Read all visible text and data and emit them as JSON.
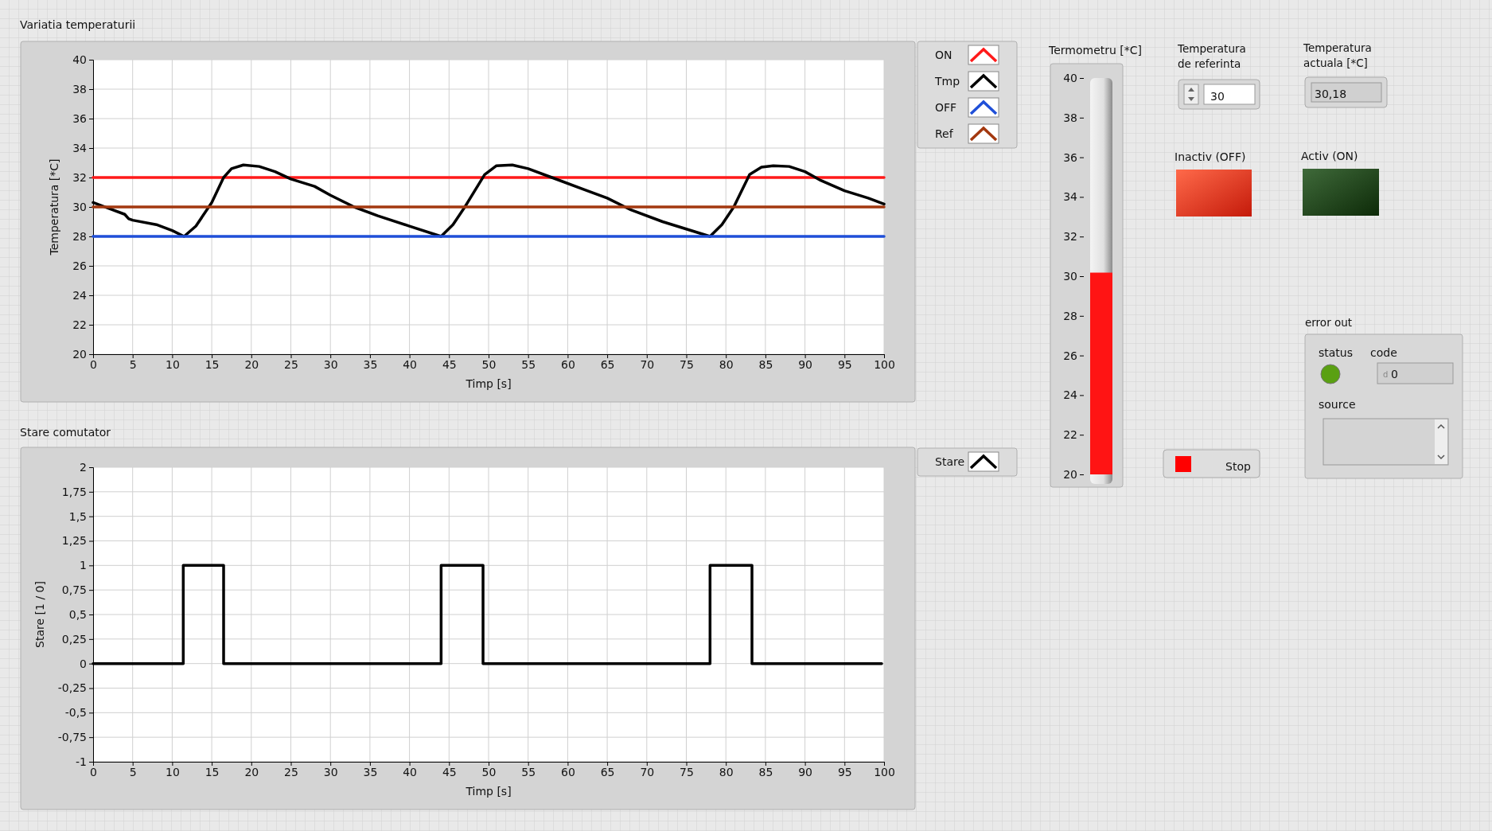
{
  "chart_data": [
    {
      "type": "line",
      "title": "Variatia temperaturii",
      "xlabel": "Timp [s]",
      "ylabel": "Temperatura [*C]",
      "xlim": [
        0,
        100
      ],
      "xticks": [
        0,
        5,
        10,
        15,
        20,
        25,
        30,
        35,
        40,
        45,
        50,
        55,
        60,
        65,
        70,
        75,
        80,
        85,
        90,
        95,
        100
      ],
      "ylim": [
        20,
        40
      ],
      "yticks": [
        20,
        22,
        24,
        26,
        28,
        30,
        32,
        34,
        36,
        38,
        40
      ],
      "grid": true,
      "legend": "right",
      "series": [
        {
          "name": "ON",
          "color": "#ff1a1a",
          "x": [
            0,
            100
          ],
          "values": [
            32,
            32
          ]
        },
        {
          "name": "Tmp",
          "color": "#000000",
          "x": [
            0,
            2,
            4,
            4.5,
            5,
            8,
            10,
            11.5,
            13,
            15,
            16.5,
            17.5,
            19,
            21,
            23,
            25,
            28,
            30,
            33,
            36,
            40,
            44,
            45.5,
            47,
            49.5,
            51,
            53,
            55,
            58,
            62,
            65,
            68,
            72,
            75,
            78,
            79.5,
            81,
            83,
            84.5,
            86,
            88,
            90,
            92,
            95,
            98,
            100
          ],
          "values": [
            30.3,
            29.9,
            29.5,
            29.2,
            29.1,
            28.8,
            28.4,
            28.0,
            28.7,
            30.3,
            32.0,
            32.6,
            32.85,
            32.75,
            32.4,
            31.9,
            31.4,
            30.8,
            30.0,
            29.4,
            28.7,
            28.0,
            28.8,
            30.0,
            32.2,
            32.8,
            32.85,
            32.6,
            32.0,
            31.2,
            30.6,
            29.8,
            29.0,
            28.5,
            28.0,
            28.8,
            30.0,
            32.2,
            32.7,
            32.8,
            32.75,
            32.4,
            31.8,
            31.1,
            30.6,
            30.2
          ]
        },
        {
          "name": "OFF",
          "color": "#1f4fd8",
          "x": [
            0,
            100
          ],
          "values": [
            28,
            28
          ]
        },
        {
          "name": "Ref",
          "color": "#a3380f",
          "x": [
            0,
            100
          ],
          "values": [
            30,
            30
          ]
        }
      ]
    },
    {
      "type": "step",
      "title": "Stare comutator",
      "xlabel": "Timp [s]",
      "ylabel": "Stare [1 / 0]",
      "xlim": [
        0,
        100
      ],
      "xticks": [
        0,
        5,
        10,
        15,
        20,
        25,
        30,
        35,
        40,
        45,
        50,
        55,
        60,
        65,
        70,
        75,
        80,
        85,
        90,
        95,
        100
      ],
      "ylim": [
        -1,
        2
      ],
      "yticks": [
        -1,
        {
          "value": -0.75,
          "label": "-0,75"
        },
        {
          "value": -0.5,
          "label": "-0,5"
        },
        {
          "value": -0.25,
          "label": "-0,25"
        },
        0,
        {
          "value": 0.25,
          "label": "0,25"
        },
        {
          "value": 0.5,
          "label": "0,5"
        },
        {
          "value": 0.75,
          "label": "0,75"
        },
        1,
        {
          "value": 1.25,
          "label": "1,25"
        },
        {
          "value": 1.5,
          "label": "1,5"
        },
        {
          "value": 1.75,
          "label": "1,75"
        },
        2
      ],
      "grid": true,
      "legend": "right",
      "series": [
        {
          "name": "Stare",
          "color": "#000000",
          "x": [
            0,
            11.4,
            16.5,
            44,
            49.3,
            78,
            83.3,
            99.7
          ],
          "values": [
            0,
            1,
            0,
            1,
            0,
            1,
            0,
            0
          ]
        }
      ]
    },
    {
      "type": "bar",
      "title": "Termometru [*C]",
      "categories": [
        null
      ],
      "values": [
        30.18
      ],
      "color": "#ff1414",
      "ylim": [
        20,
        40
      ],
      "yticks": [
        20,
        22,
        24,
        26,
        28,
        30,
        32,
        34,
        36,
        38,
        40
      ]
    },
    {
      "type": "other",
      "annotations": [
        "Temperatura de referinta",
        "30",
        "Temperatura actuala [*C]",
        "30,18",
        "Inactiv (OFF)",
        "Activ (ON)",
        "Stop",
        "error out",
        "status",
        "code",
        "d",
        "0",
        "source"
      ]
    }
  ]
}
